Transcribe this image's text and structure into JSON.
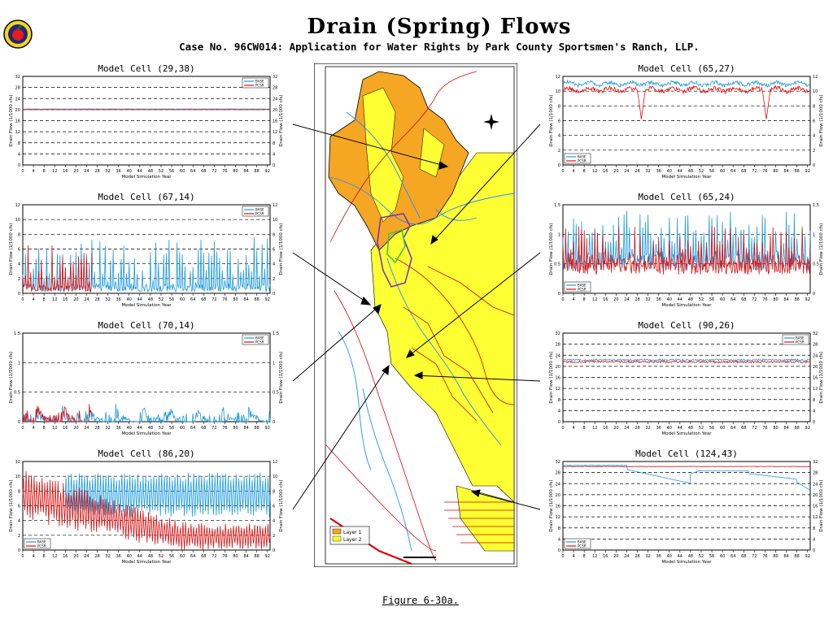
{
  "header": {
    "title": "Drain (Spring) Flows",
    "subtitle": "Case No. 96CW014: Application for Water Rights by Park County Sportsmen's Ranch, LLP."
  },
  "caption": "Figure 6-30a.",
  "map": {
    "legend": [
      "Layer 1",
      "Layer 2"
    ],
    "colors": {
      "layer1": "#f5a623",
      "layer2": "#ffff33",
      "streams": "#1e90ff",
      "roads": "#dd0000",
      "boundary": "#7b2fbe",
      "cell": "#2ecc40"
    }
  },
  "common": {
    "xlabel": "Model Simulation Year",
    "ylabel_left": "Drain Flow (1/1000 cfs)",
    "ylabel_right": "Drain Flow (1/1000 cfs)",
    "xticks": [
      0,
      4,
      8,
      12,
      16,
      20,
      24,
      28,
      32,
      36,
      40,
      44,
      48,
      52,
      56,
      60,
      64,
      68,
      72,
      76,
      80,
      84,
      88,
      92
    ],
    "legend": [
      "BASE",
      "PCSR"
    ],
    "colors": {
      "BASE": "#1e9be0",
      "PCSR": "#dd1111"
    }
  },
  "chart_data": [
    {
      "id": "c1",
      "type": "line",
      "title": "Model Cell (29,38)",
      "xlabel": "Model Simulation Year",
      "ylabel": "Drain Flow (1/1000 cfs)",
      "ylim": [
        0,
        32
      ],
      "yticks": [
        0,
        4,
        8,
        12,
        16,
        20,
        24,
        28,
        32
      ],
      "xlim": [
        0,
        93
      ],
      "legend_position": "top-right",
      "grid": "horizontal-dashed",
      "series": [
        {
          "name": "BASE",
          "pattern": "flat",
          "base": 20.2,
          "amp": 0.1
        },
        {
          "name": "PCSR",
          "pattern": "flat",
          "base": 20.0,
          "amp": 0.1
        }
      ]
    },
    {
      "id": "c2",
      "type": "line",
      "title": "Model Cell (67,14)",
      "xlabel": "Model Simulation Year",
      "ylabel": "Drain Flow (1/1000 cfs)",
      "ylim": [
        0,
        12
      ],
      "yticks": [
        0,
        2,
        4,
        6,
        8,
        10,
        12
      ],
      "xlim": [
        0,
        93
      ],
      "legend_position": "top-right",
      "grid": "horizontal-dashed",
      "series": [
        {
          "name": "BASE",
          "pattern": "spiky",
          "base": 0.2,
          "amp": 7.5,
          "from": 0,
          "to": 93
        },
        {
          "name": "PCSR",
          "pattern": "spiky",
          "base": 0.2,
          "amp": 6.5,
          "from": 0,
          "to": 26
        }
      ]
    },
    {
      "id": "c3",
      "type": "line",
      "title": "Model Cell (70,14)",
      "xlabel": "Model Simulation Year",
      "ylabel": "Drain Flow (1/1000 cfs)",
      "ylim": [
        0,
        1.5
      ],
      "yticks": [
        0,
        0.5,
        1.0,
        1.5
      ],
      "xlim": [
        0,
        93
      ],
      "legend_position": "top-right",
      "grid": "horizontal-dashed",
      "series": [
        {
          "name": "BASE",
          "pattern": "bursts",
          "base": 0,
          "amp": 0.3,
          "from": 0,
          "to": 93
        },
        {
          "name": "PCSR",
          "pattern": "bursts",
          "base": 0,
          "amp": 0.35,
          "from": 0,
          "to": 26
        }
      ]
    },
    {
      "id": "c4",
      "type": "line",
      "title": "Model Cell (86,20)",
      "xlabel": "Model Simulation Year",
      "ylabel": "Drain Flow (1/1000 cfs)",
      "ylim": [
        0,
        12
      ],
      "yticks": [
        0,
        2,
        4,
        6,
        8,
        10,
        12
      ],
      "xlim": [
        0,
        93
      ],
      "legend_position": "bottom-left",
      "grid": "horizontal-dashed",
      "series": [
        {
          "name": "BASE",
          "pattern": "oscill",
          "base": 7.5,
          "amp": 3.0,
          "from": 16,
          "to": 93
        },
        {
          "name": "PCSR",
          "pattern": "decay",
          "base": 7.5,
          "amp": 3.5,
          "from": 0,
          "to": 93
        }
      ]
    },
    {
      "id": "c5",
      "type": "line",
      "title": "Model Cell (65,27)",
      "xlabel": "Model Simulation Year",
      "ylabel": "Drain Flow (1/1000 cfs)",
      "ylim": [
        0,
        12
      ],
      "yticks": [
        0,
        2,
        4,
        6,
        8,
        10,
        12
      ],
      "xlim": [
        0,
        93
      ],
      "legend_position": "bottom-left",
      "grid": "horizontal-dashed",
      "series": [
        {
          "name": "BASE",
          "pattern": "wavy",
          "base": 11.0,
          "amp": 0.5
        },
        {
          "name": "PCSR",
          "pattern": "wavy-dips",
          "base": 10.2,
          "amp": 0.6
        }
      ]
    },
    {
      "id": "c6",
      "type": "line",
      "title": "Model Cell (65,24)",
      "xlabel": "Model Simulation Year",
      "ylabel": "Drain Flow (1/1000 cfs)",
      "ylim": [
        0,
        1.5
      ],
      "yticks": [
        0,
        0.5,
        1.0,
        1.5
      ],
      "xlim": [
        0,
        93
      ],
      "legend_position": "bottom-left",
      "grid": "horizontal-dashed",
      "series": [
        {
          "name": "BASE",
          "pattern": "dense-spiky",
          "base": 0.55,
          "amp": 0.85
        },
        {
          "name": "PCSR",
          "pattern": "dense-spiky",
          "base": 0.45,
          "amp": 0.7
        }
      ]
    },
    {
      "id": "c7",
      "type": "line",
      "title": "Model Cell (90,26)",
      "xlabel": "Model Simulation Year",
      "ylabel": "Drain Flow (1/1000 cfs)",
      "ylim": [
        0,
        32
      ],
      "yticks": [
        0,
        4,
        8,
        12,
        16,
        20,
        24,
        28,
        32
      ],
      "xlim": [
        0,
        93
      ],
      "legend_position": "top-right",
      "grid": "horizontal-dashed",
      "series": [
        {
          "name": "BASE",
          "pattern": "flat",
          "base": 22.3,
          "amp": 0.6
        },
        {
          "name": "PCSR",
          "pattern": "flat",
          "base": 21.6,
          "amp": 0.7
        }
      ]
    },
    {
      "id": "c8",
      "type": "line",
      "title": "Model Cell (124,43)",
      "xlabel": "Model Simulation Year",
      "ylabel": "Drain Flow (1/1000 cfs)",
      "ylim": [
        0,
        32
      ],
      "yticks": [
        0,
        4,
        8,
        12,
        16,
        20,
        24,
        28,
        32
      ],
      "xlim": [
        0,
        93
      ],
      "legend_position": "bottom-left",
      "grid": "horizontal-dashed",
      "series": [
        {
          "name": "BASE",
          "pattern": "declining",
          "base": 30.6,
          "amp": 1.0
        },
        {
          "name": "PCSR",
          "pattern": "flat",
          "base": 30.2,
          "amp": 0.15
        }
      ]
    }
  ]
}
